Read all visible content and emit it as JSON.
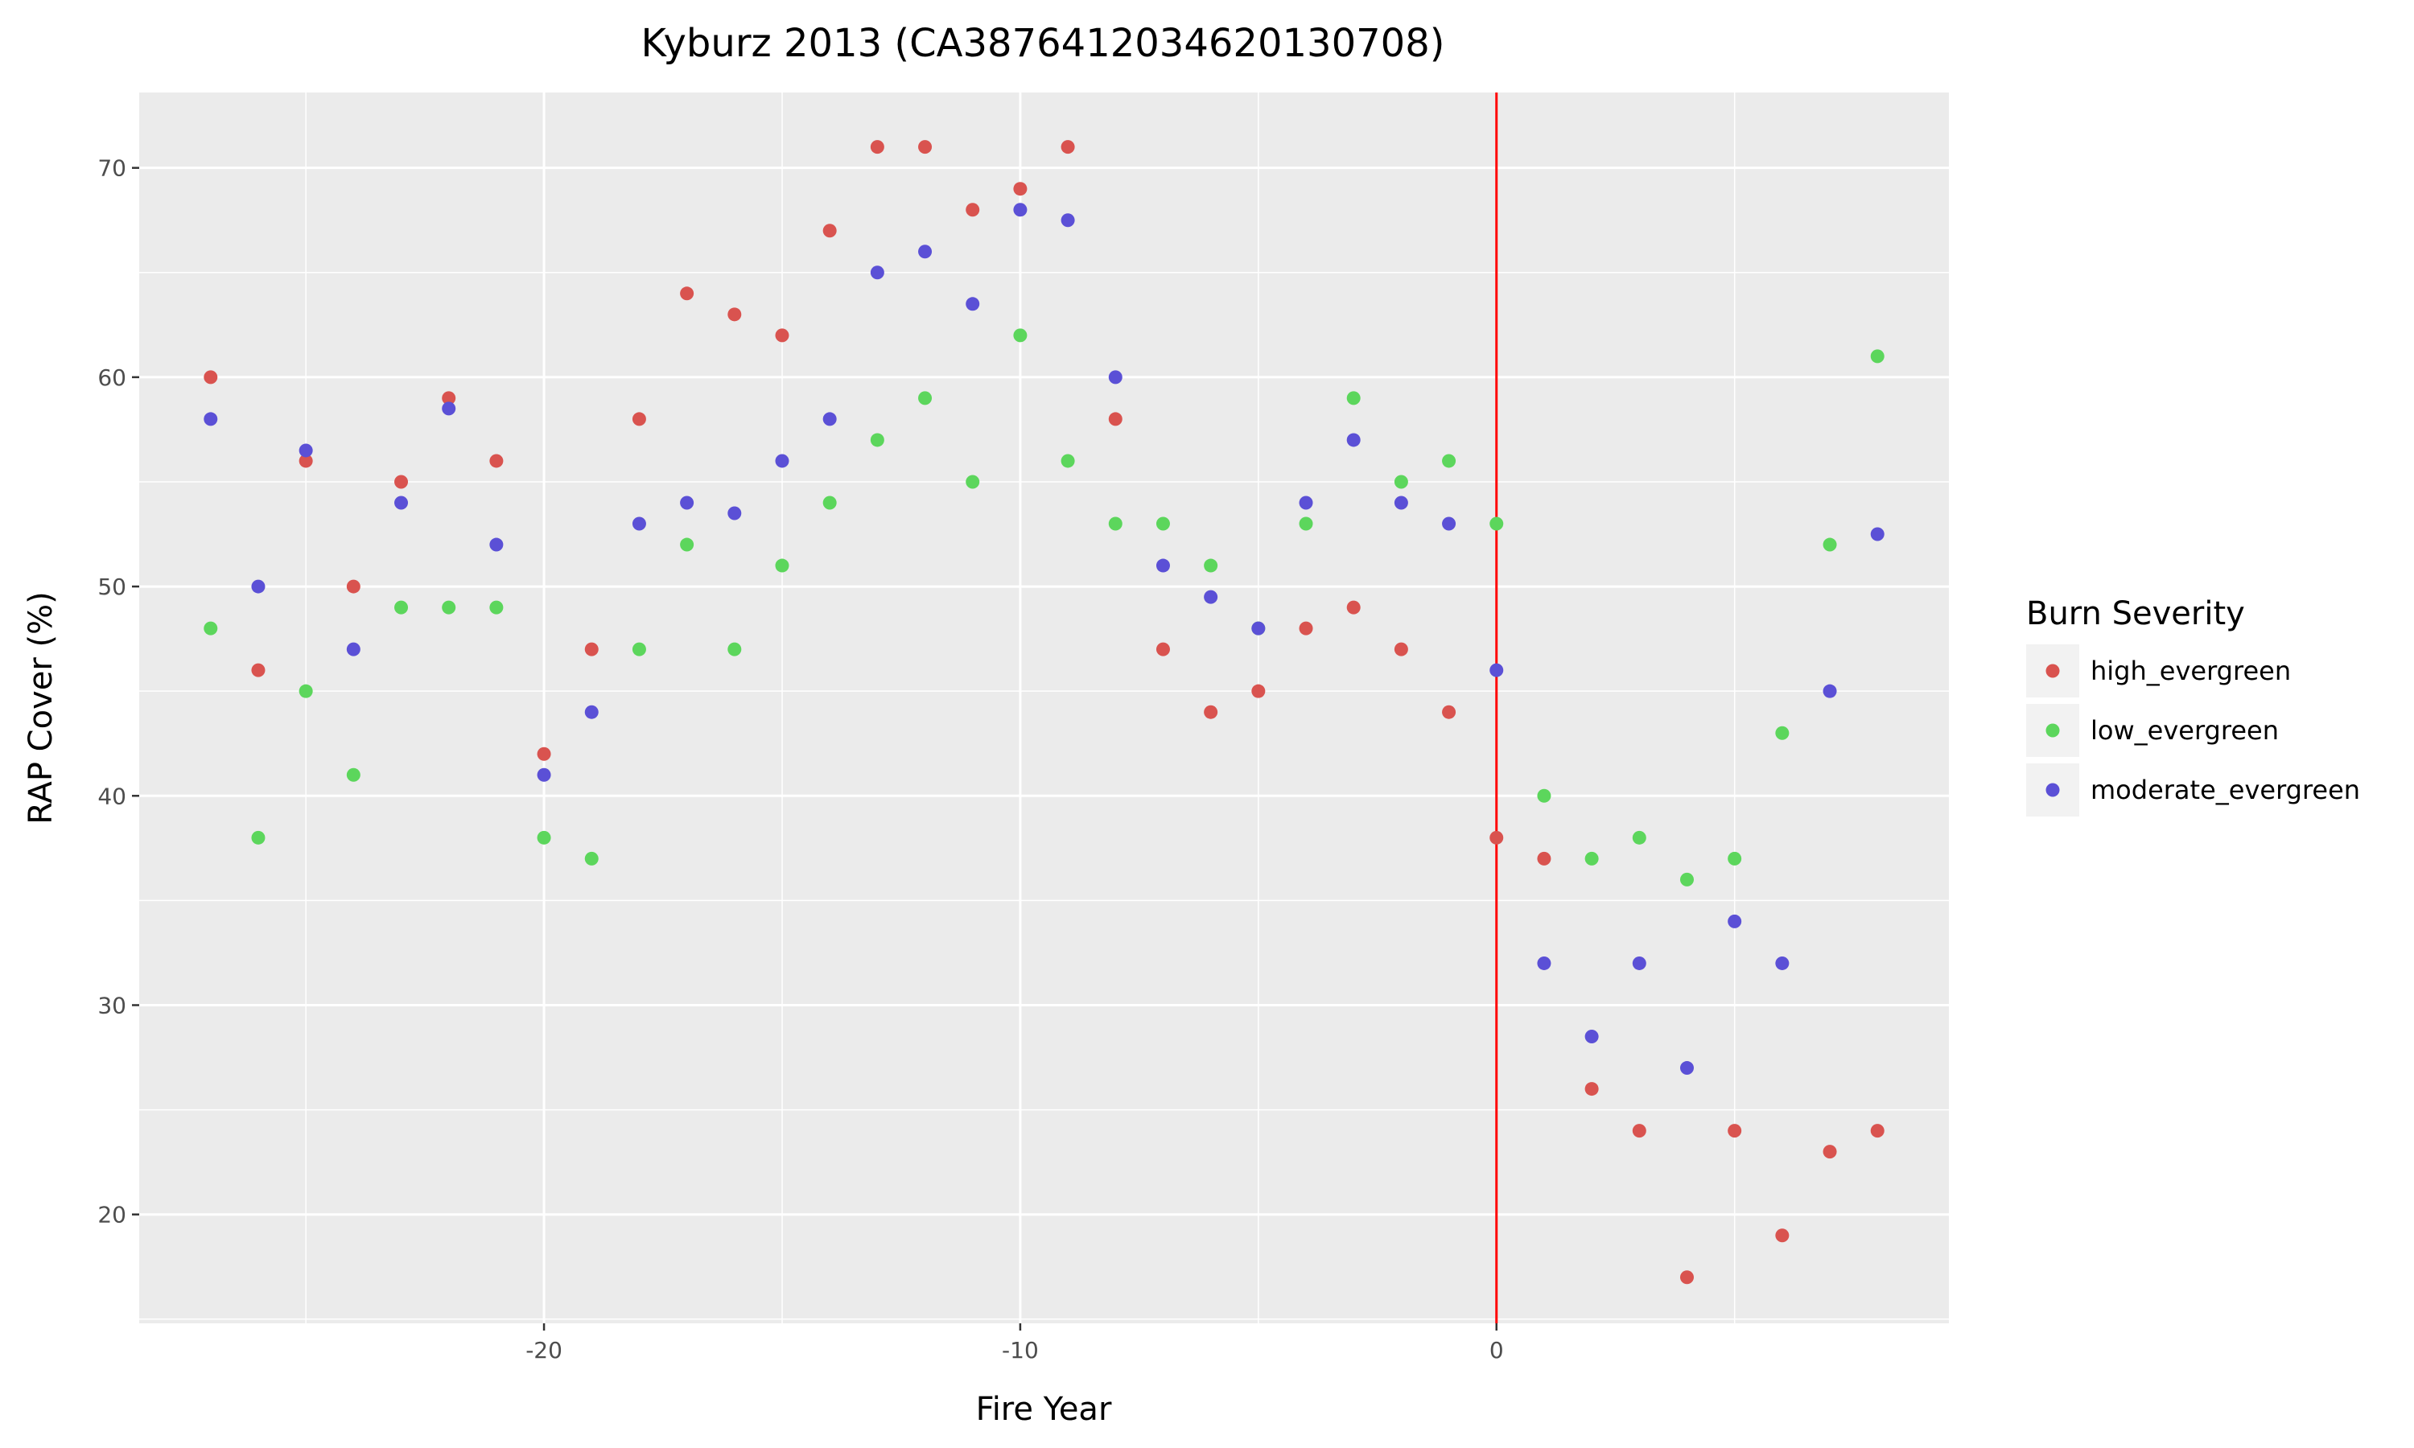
{
  "chart_data": {
    "type": "scatter",
    "title": "Kyburz 2013 (CA3876412034620130708)",
    "xlabel": "Fire Year",
    "ylabel": "RAP Cover (%)",
    "xlim": [
      -28.5,
      9.5
    ],
    "ylim": [
      14.8,
      73.6
    ],
    "x_ticks": [
      -20,
      -10,
      0
    ],
    "x_tick_labels": [
      "-20",
      "-10",
      "0"
    ],
    "y_ticks": [
      20,
      30,
      40,
      50,
      60,
      70
    ],
    "y_tick_labels": [
      "20",
      "30",
      "40",
      "50",
      "60",
      "70"
    ],
    "grid": true,
    "vline": {
      "x": 0,
      "color": "#ff0000"
    },
    "legend": {
      "title": "Burn Severity",
      "position": "right"
    },
    "series": [
      {
        "name": "high_evergreen",
        "color": "#d9534f",
        "x": [
          -27,
          -26,
          -25,
          -24,
          -23,
          -22,
          -21,
          -20,
          -19,
          -18,
          -17,
          -16,
          -15,
          -14,
          -13,
          -12,
          -11,
          -10,
          -9,
          -8,
          -7,
          -6,
          -5,
          -4,
          -3,
          -2,
          -1,
          0,
          1,
          2,
          3,
          4,
          5,
          6,
          7,
          8
        ],
        "y": [
          60,
          46,
          56,
          50,
          55,
          59,
          56,
          42,
          47,
          58,
          64,
          63,
          62,
          67,
          71,
          71,
          68,
          69,
          71,
          58,
          47,
          44,
          45,
          48,
          49,
          47,
          44,
          38,
          37,
          26,
          24,
          17,
          24,
          19,
          23,
          24
        ]
      },
      {
        "name": "low_evergreen",
        "color": "#5cd65c",
        "x": [
          -27,
          -26,
          -25,
          -24,
          -23,
          -22,
          -21,
          -20,
          -19,
          -18,
          -17,
          -16,
          -15,
          -14,
          -13,
          -12,
          -11,
          -10,
          -9,
          -8,
          -7,
          -6,
          -5,
          -4,
          -3,
          -2,
          -1,
          0,
          1,
          2,
          3,
          4,
          5,
          6,
          7,
          8
        ],
        "y": [
          48,
          38,
          45,
          41,
          49,
          49,
          49,
          38,
          37,
          47,
          52,
          47,
          51,
          54,
          57,
          59,
          55,
          62,
          56,
          53,
          53,
          51,
          48,
          53,
          59,
          55,
          56,
          53,
          40,
          37,
          38,
          36,
          37,
          43,
          52,
          61
        ]
      },
      {
        "name": "moderate_evergreen",
        "color": "#5b50d6",
        "x": [
          -27,
          -26,
          -25,
          -24,
          -23,
          -22,
          -21,
          -20,
          -19,
          -18,
          -17,
          -16,
          -15,
          -14,
          -13,
          -12,
          -11,
          -10,
          -9,
          -8,
          -7,
          -6,
          -5,
          -4,
          -3,
          -2,
          -1,
          0,
          1,
          2,
          3,
          4,
          5,
          6,
          7,
          8
        ],
        "y": [
          58,
          50,
          56.5,
          47,
          54,
          58.5,
          52,
          41,
          44,
          53,
          54,
          53.5,
          56,
          58,
          65,
          66,
          63.5,
          68,
          67.5,
          60,
          51,
          49.5,
          48,
          54,
          57,
          54,
          53,
          46,
          32,
          28.5,
          32,
          27,
          34,
          32,
          45,
          52.5
        ]
      }
    ]
  }
}
